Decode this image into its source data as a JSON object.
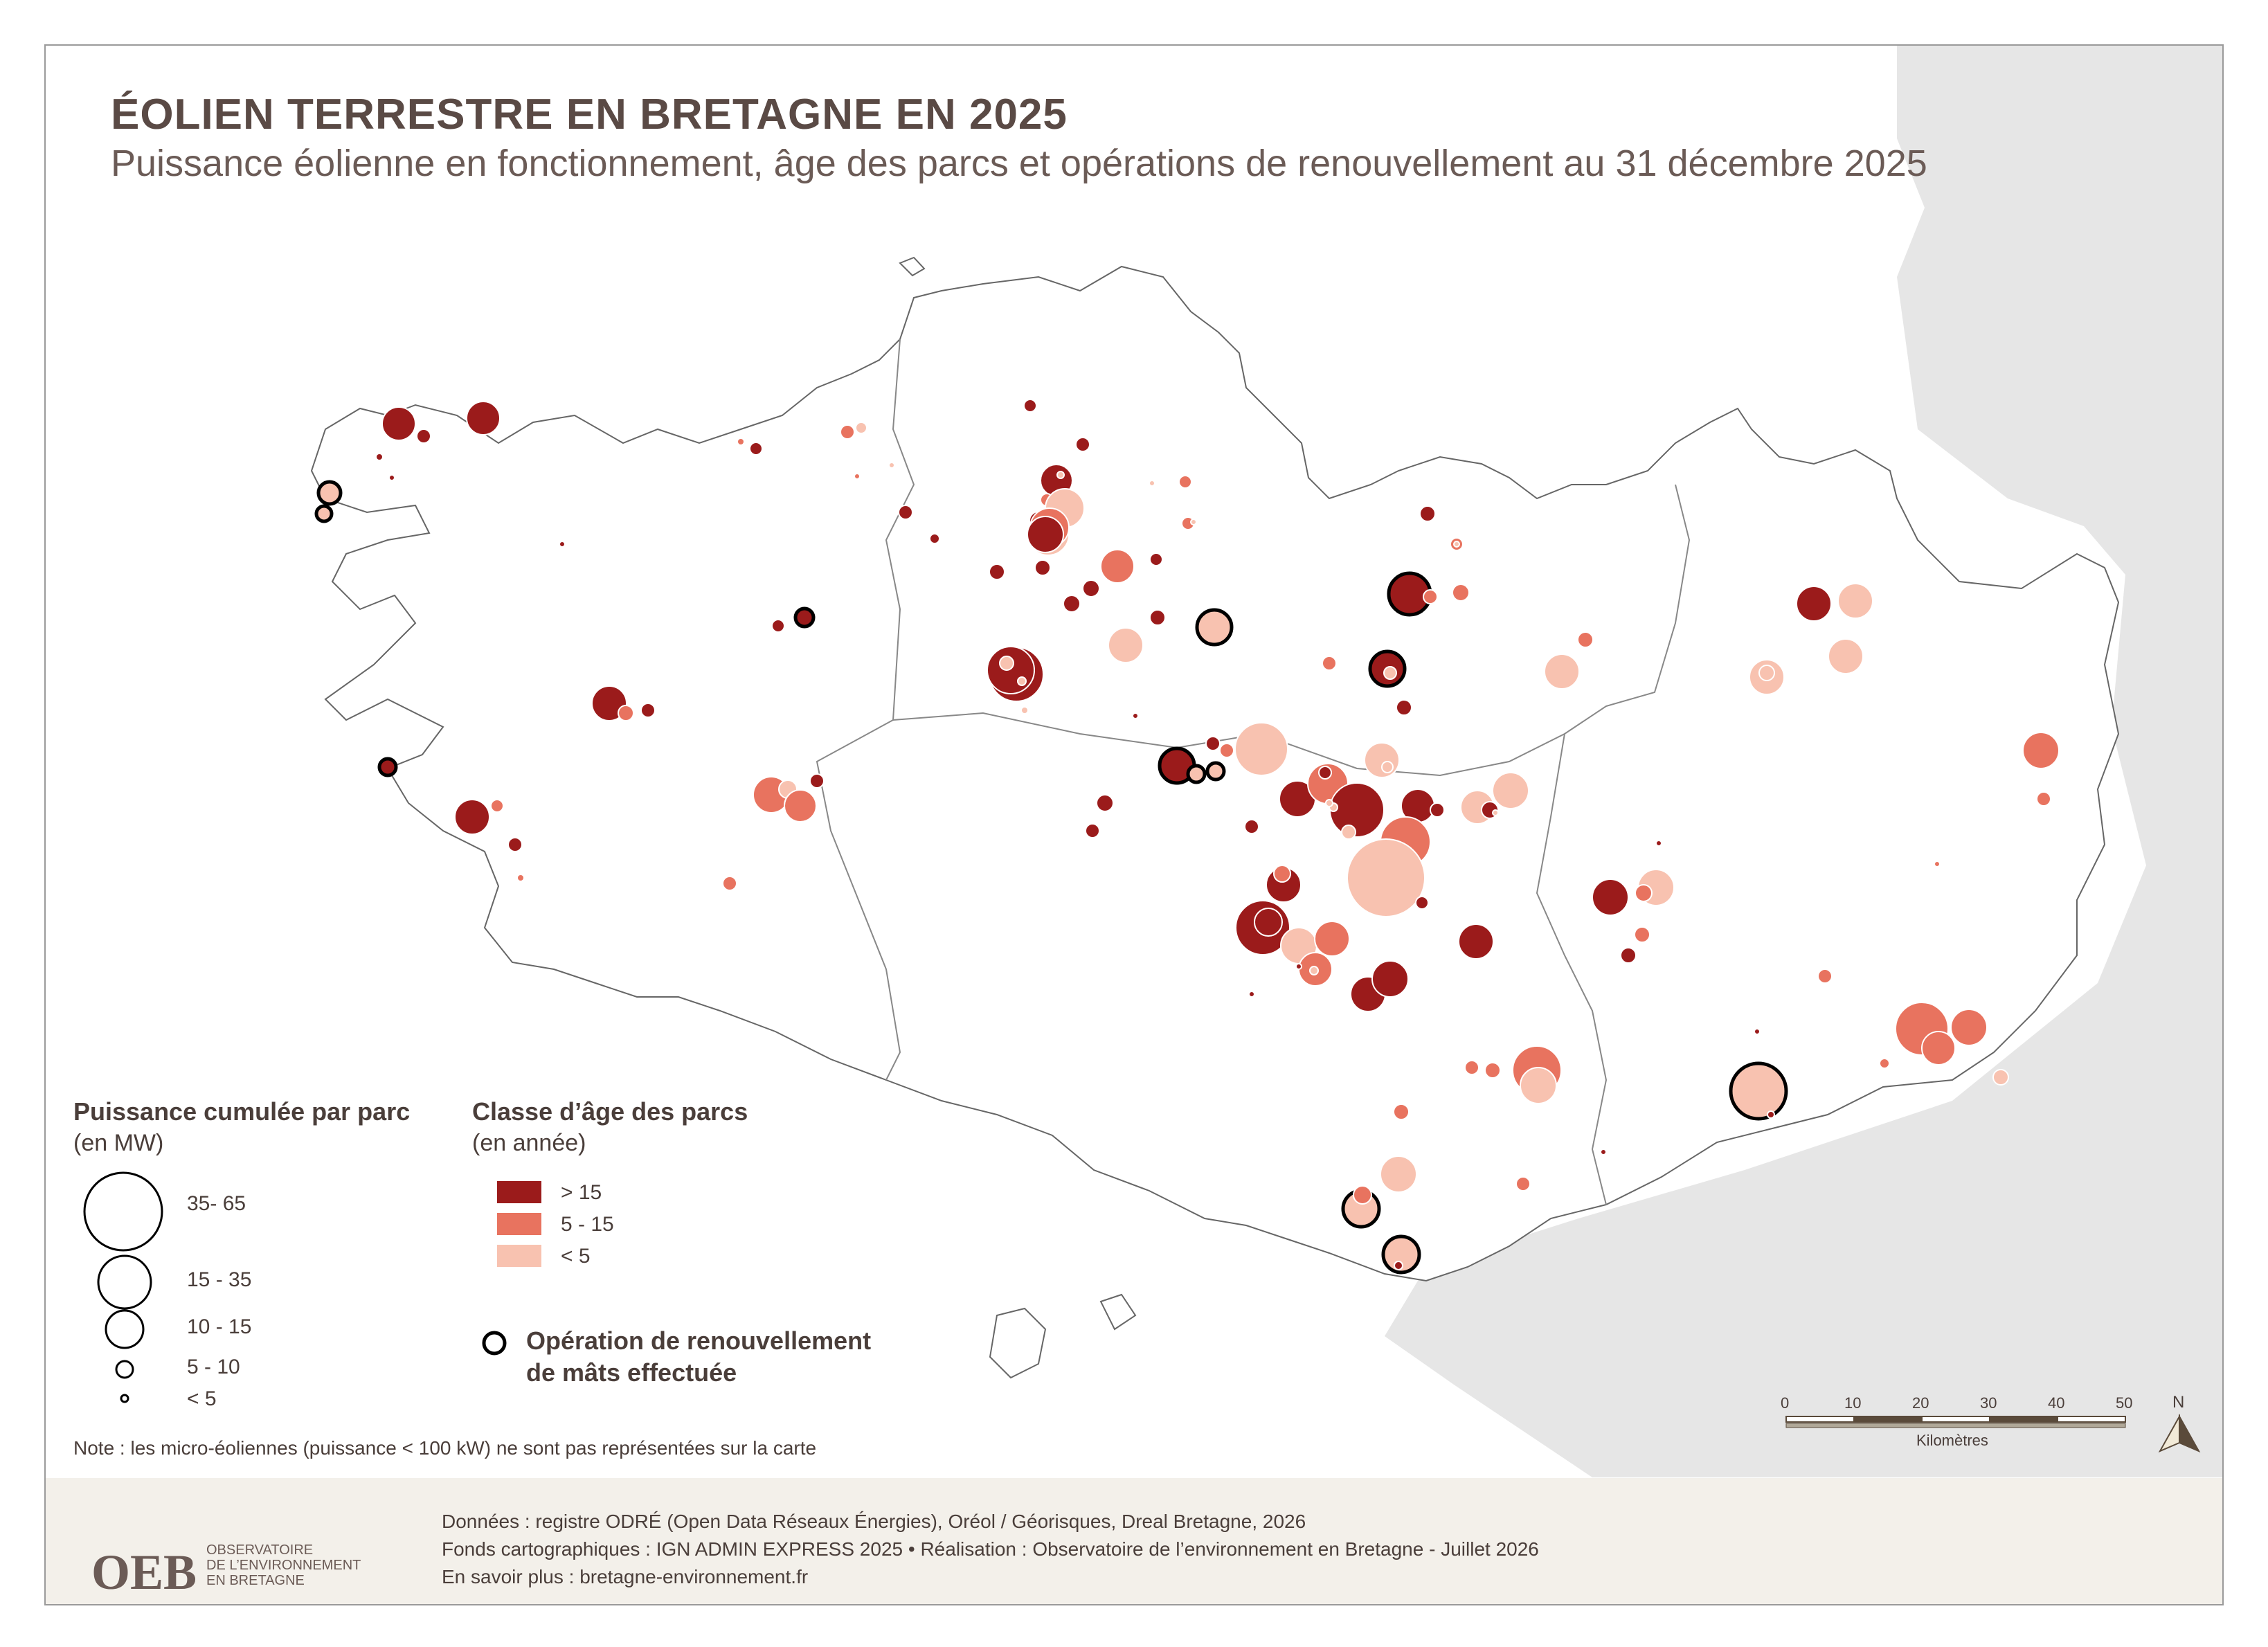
{
  "title": "ÉOLIEN TERRESTRE EN BRETAGNE EN 2025",
  "subtitle": "Puissance éolienne en fonctionnement, âge des parcs et opérations de renouvellement au 31 décembre 2025",
  "legend_size": {
    "title": "Puissance cumulée par parc",
    "unit": "(en MW)",
    "classes": [
      "35- 65",
      "15 - 35",
      "10 - 15",
      "5 - 10",
      "< 5"
    ]
  },
  "legend_age": {
    "title": "Classe d’âge des parcs",
    "unit": "(en année)",
    "classes": [
      {
        "label": "> 15",
        "color": "#9b1b1b"
      },
      {
        "label": "5 - 15",
        "color": "#e8735f"
      },
      {
        "label": "< 5",
        "color": "#f8c2b0"
      }
    ]
  },
  "legend_renewal": {
    "line1": "Opération de renouvellement",
    "line2": "de mâts effectuée"
  },
  "scale": {
    "ticks": [
      "0",
      "10",
      "20",
      "30",
      "40",
      "50"
    ],
    "unit": "Kilomètres"
  },
  "north": "N",
  "note": "Note : les micro-éoliennes (puissance < 100 kW) ne sont pas représentées sur la carte",
  "footer": {
    "line1": "Données : registre ODRÉ (Open Data Réseaux Énergies), Oréol / Géorisques, Dreal Bretagne, 2026",
    "line2": "Fonds cartographiques : IGN ADMIN EXPRESS 2025 • Réalisation : Observatoire de l’environnement en Bretagne - Juillet 2026",
    "line3": "En savoir plus : bretagne-environnement.fr",
    "logo_text": "OEB",
    "logo_sub": [
      "OBSERVATOIRE",
      "DE L’ENVIRONNEMENT",
      "EN BRETAGNE"
    ]
  },
  "colors": {
    "old": "#9b1b1b",
    "mid": "#e8735f",
    "young": "#f8c2b0",
    "land": "#ffffff",
    "outside": "#e6e6e6",
    "border": "#777777"
  }
}
